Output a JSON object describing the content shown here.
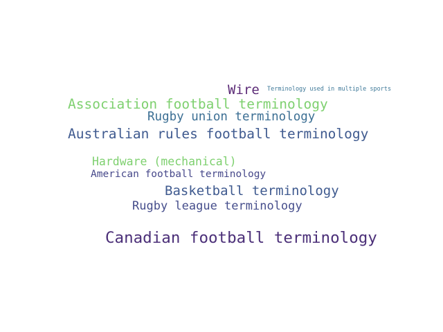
{
  "words": [
    {
      "text": "Wire",
      "color": "#5b2a76"
    },
    {
      "text": "Terminology used in multiple sports",
      "color": "#3d7898"
    },
    {
      "text": "Association football terminology",
      "color": "#7ed06f"
    },
    {
      "text": "Rugby union terminology",
      "color": "#3c6f94"
    },
    {
      "text": "Australian rules football terminology",
      "color": "#3f5a8f"
    },
    {
      "text": "Hardware (mechanical)",
      "color": "#7ed06f"
    },
    {
      "text": "American football terminology",
      "color": "#46488a"
    },
    {
      "text": "Basketball terminology",
      "color": "#3f5a8f"
    },
    {
      "text": "Rugby league terminology",
      "color": "#464e8c"
    },
    {
      "text": "Canadian football terminology",
      "color": "#4b2f78"
    }
  ]
}
